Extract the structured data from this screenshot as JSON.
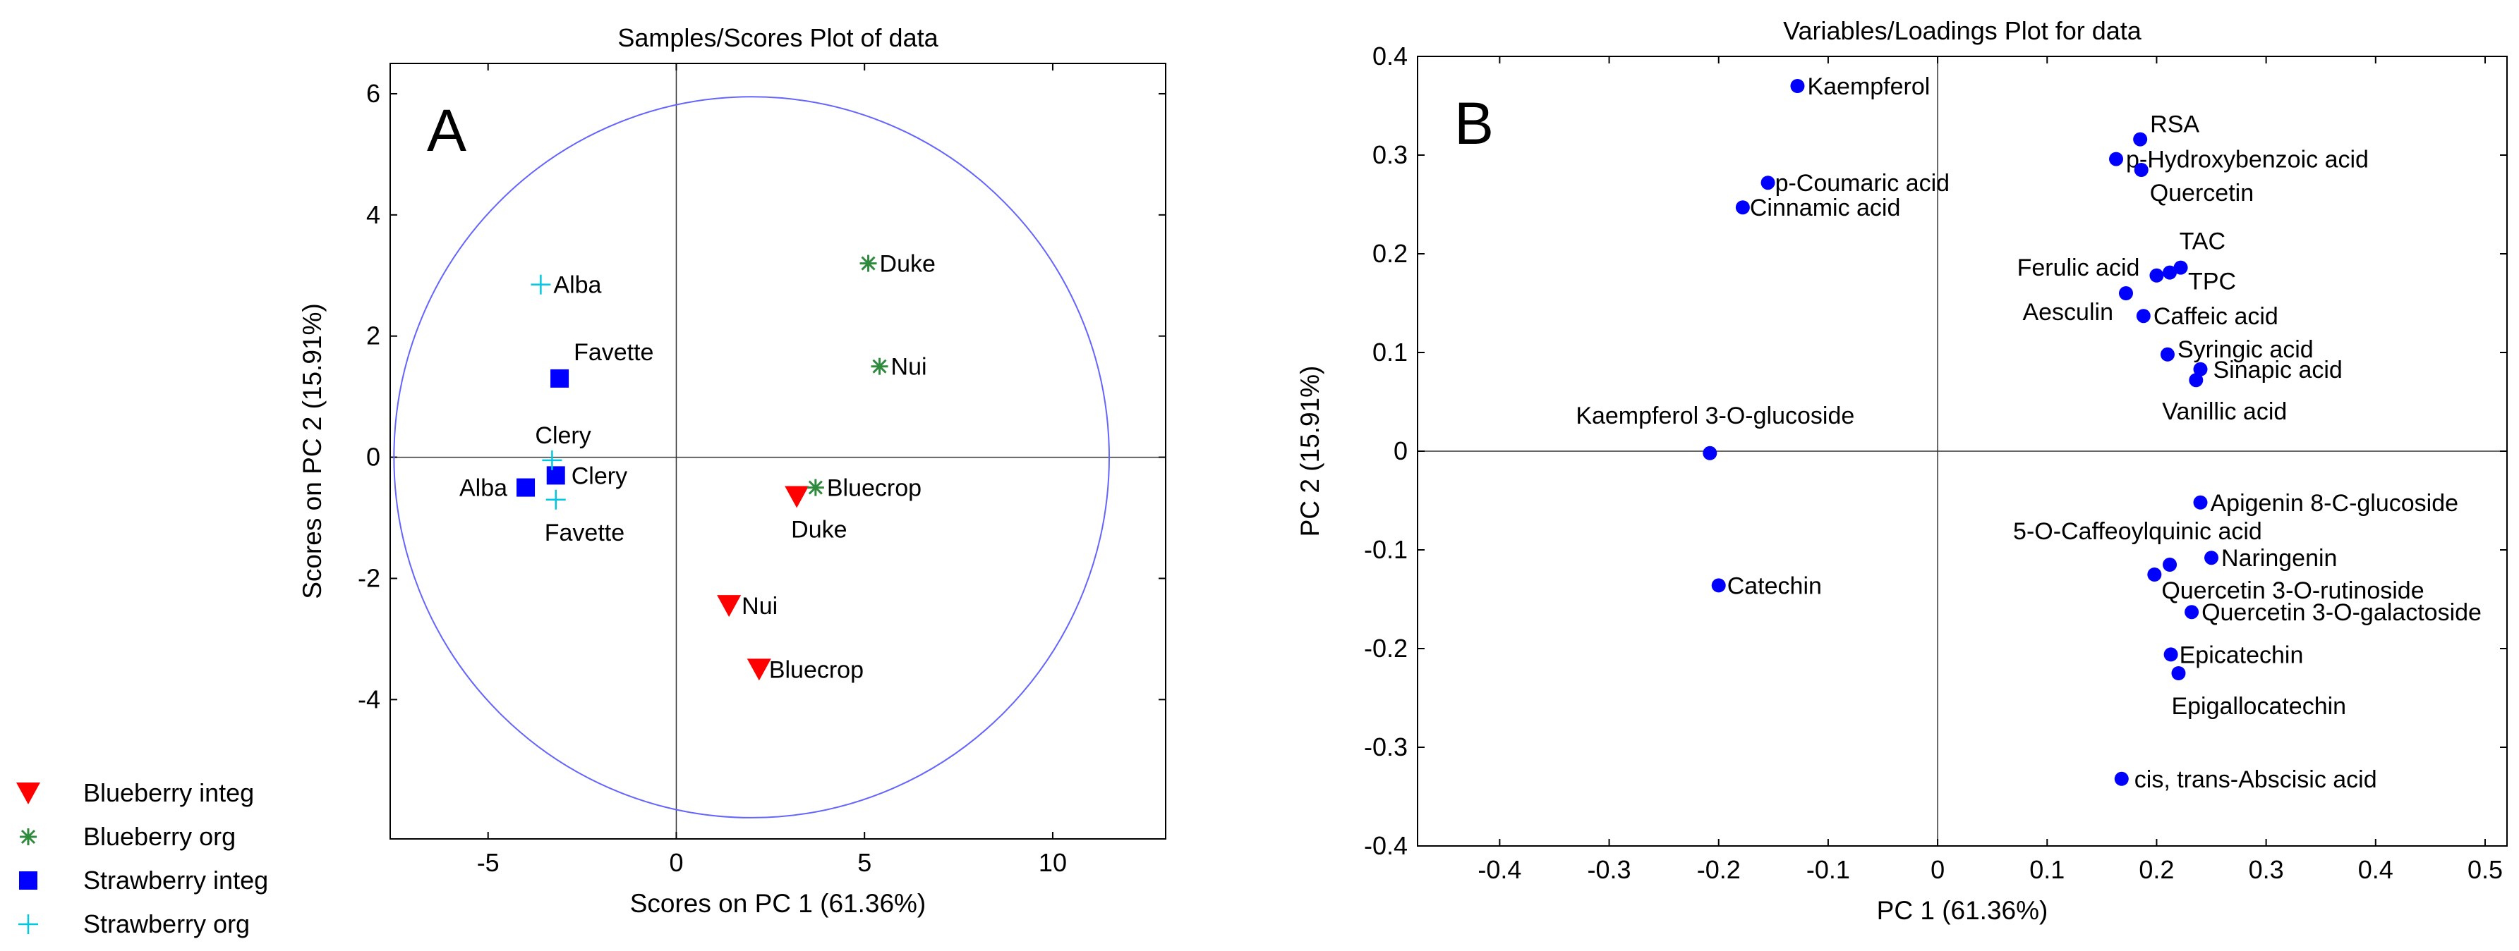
{
  "chart_data": [
    {
      "panel_label": "A",
      "type": "scatter",
      "title": "Samples/Scores Plot of data",
      "xlabel": "Scores on PC 1 (61.36%)",
      "ylabel": "Scores on PC 2 (15.91%)",
      "xlim": [
        -7.6,
        13.0
      ],
      "ylim": [
        -6.3,
        6.5
      ],
      "xticks": [
        -5,
        0,
        5,
        10
      ],
      "xtick_labels": [
        "-5",
        "0",
        "5",
        "10"
      ],
      "yticks": [
        -4,
        -2,
        0,
        2,
        4,
        6
      ],
      "ytick_labels": [
        "-4",
        "-2",
        "0",
        "2",
        "4",
        "6"
      ],
      "ellipse": {
        "cx": 2.0,
        "cy": 0.0,
        "rx": 9.5,
        "ry": 5.95
      },
      "legend": [
        {
          "name": "Blueberry integ",
          "marker": "triangle",
          "color": "#ff0000"
        },
        {
          "name": "Blueberry org",
          "marker": "star",
          "color": "#2e8b3e"
        },
        {
          "name": "Strawberry integ",
          "marker": "square",
          "color": "#0000ff"
        },
        {
          "name": "Strawberry org",
          "marker": "plus",
          "color": "#00c8e0"
        }
      ],
      "legend_position": "outside-bottom-left",
      "series": [
        {
          "name": "Blueberry integ",
          "points": [
            {
              "x": 3.2,
              "y": -0.65,
              "label": "Duke"
            },
            {
              "x": 1.4,
              "y": -2.45,
              "label": "Nui"
            },
            {
              "x": 2.2,
              "y": -3.5,
              "label": "Bluecrop"
            }
          ]
        },
        {
          "name": "Blueberry org",
          "points": [
            {
              "x": 5.1,
              "y": 3.2,
              "label": "Duke"
            },
            {
              "x": 5.4,
              "y": 1.5,
              "label": "Nui"
            },
            {
              "x": 3.7,
              "y": -0.5,
              "label": "Bluecrop"
            }
          ]
        },
        {
          "name": "Strawberry integ",
          "points": [
            {
              "x": -3.1,
              "y": 1.3,
              "label": "Favette"
            },
            {
              "x": -3.2,
              "y": -0.3,
              "label": "Clery"
            },
            {
              "x": -4.0,
              "y": -0.5,
              "label": "Alba"
            }
          ]
        },
        {
          "name": "Strawberry org",
          "points": [
            {
              "x": -3.6,
              "y": 2.85,
              "label": "Alba"
            },
            {
              "x": -3.3,
              "y": -0.05,
              "label": "Clery"
            },
            {
              "x": -3.2,
              "y": -0.7,
              "label": "Favette"
            }
          ]
        }
      ]
    },
    {
      "panel_label": "B",
      "type": "scatter",
      "title": "Variables/Loadings Plot for data",
      "xlabel": "PC 1 (61.36%)",
      "ylabel": "PC 2 (15.91%)",
      "xlim": [
        -0.475,
        0.52
      ],
      "ylim": [
        -0.4,
        0.4
      ],
      "xticks": [
        -0.4,
        -0.3,
        -0.2,
        -0.1,
        0,
        0.1,
        0.2,
        0.3,
        0.4,
        0.5
      ],
      "xtick_labels": [
        "-0.4",
        "-0.3",
        "-0.2",
        "-0.1",
        "0",
        "0.1",
        "0.2",
        "0.3",
        "0.4",
        "0.5"
      ],
      "yticks": [
        -0.4,
        -0.3,
        -0.2,
        -0.1,
        0,
        0.1,
        0.2,
        0.3,
        0.4
      ],
      "ytick_labels": [
        "-0.4",
        "-0.3",
        "-0.2",
        "-0.1",
        "0",
        "0.1",
        "0.2",
        "0.3",
        "0.4"
      ],
      "color": "#0000ff",
      "points": [
        {
          "x": -0.128,
          "y": 0.37,
          "label": "Kaempferol"
        },
        {
          "x": -0.155,
          "y": 0.272,
          "label": "p-Coumaric acid"
        },
        {
          "x": -0.178,
          "y": 0.247,
          "label": "Cinnamic acid"
        },
        {
          "x": 0.185,
          "y": 0.316,
          "label": "RSA"
        },
        {
          "x": 0.163,
          "y": 0.296,
          "label": "p-Hydroxybenzoic acid"
        },
        {
          "x": 0.186,
          "y": 0.285,
          "label": "Quercetin"
        },
        {
          "x": 0.222,
          "y": 0.186,
          "label": "TAC"
        },
        {
          "x": 0.2,
          "y": 0.178,
          "label": "Ferulic acid"
        },
        {
          "x": 0.212,
          "y": 0.181,
          "label": "TPC"
        },
        {
          "x": 0.172,
          "y": 0.16,
          "label": "Aesculin"
        },
        {
          "x": 0.188,
          "y": 0.137,
          "label": "Caffeic acid"
        },
        {
          "x": 0.21,
          "y": 0.098,
          "label": "Syringic acid"
        },
        {
          "x": 0.24,
          "y": 0.083,
          "label": "Sinapic acid"
        },
        {
          "x": 0.236,
          "y": 0.072,
          "label": "Vanillic acid"
        },
        {
          "x": -0.208,
          "y": -0.002,
          "label": "Kaempferol 3-O-glucoside"
        },
        {
          "x": 0.24,
          "y": -0.052,
          "label": "Apigenin 8-C-glucoside"
        },
        {
          "x": 0.212,
          "y": -0.115,
          "label": "5-O-Caffeoylquinic acid"
        },
        {
          "x": 0.25,
          "y": -0.108,
          "label": "Naringenin"
        },
        {
          "x": 0.198,
          "y": -0.125,
          "label": "Quercetin 3-O-rutinoside"
        },
        {
          "x": 0.232,
          "y": -0.163,
          "label": "Quercetin 3-O-galactoside"
        },
        {
          "x": -0.2,
          "y": -0.136,
          "label": "Catechin"
        },
        {
          "x": 0.213,
          "y": -0.206,
          "label": "Epicatechin"
        },
        {
          "x": 0.22,
          "y": -0.225,
          "label": "Epigallocatechin"
        },
        {
          "x": 0.168,
          "y": -0.332,
          "label": "cis, trans-Abscisic acid"
        }
      ]
    }
  ]
}
